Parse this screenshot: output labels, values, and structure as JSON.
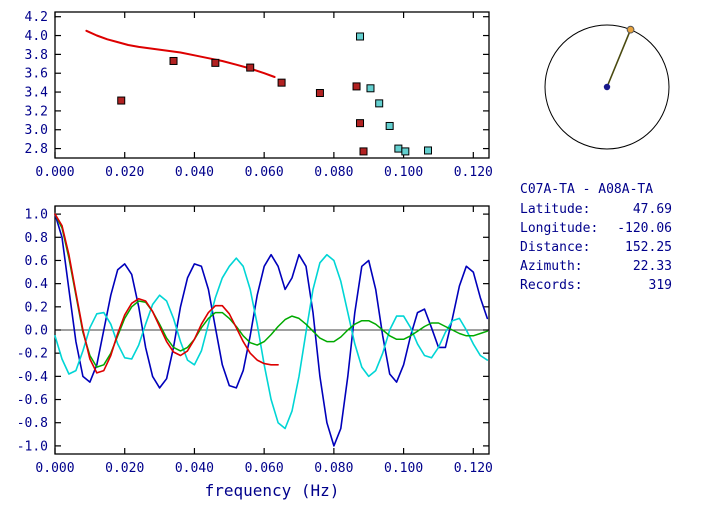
{
  "station": {
    "title": "C07A-TA - A08A-TA",
    "rows": [
      {
        "label": "Latitude:",
        "value": "47.69"
      },
      {
        "label": "Longitude:",
        "value": "-120.06"
      },
      {
        "label": "Distance:",
        "value": "152.25"
      },
      {
        "label": "Azimuth:",
        "value": "22.33"
      },
      {
        "label": "Records:",
        "value": "319"
      }
    ]
  },
  "azimuth_dial": {
    "azimuth_deg": 22.33,
    "circle_color": "#000000",
    "line_color": "#4a4a10",
    "center_dot_color": "#1a1a8c",
    "end_dot_color": "#e8a33d"
  },
  "colors": {
    "text": "#00008b",
    "axis": "#000000",
    "red": "#dd0000",
    "dark_blue": "#0000bb",
    "cyan": "#00d5d5",
    "green": "#00aa00",
    "red_marker": "#b22222",
    "cyan_marker": "#63cfcf"
  },
  "chart_data": [
    {
      "id": "chart-top",
      "type": "scatter",
      "title": "",
      "xlabel": "",
      "ylabel": "",
      "xlim": [
        0,
        0.1245
      ],
      "ylim": [
        2.7,
        4.25
      ],
      "grid": false,
      "axis_color": "#000000",
      "xticks": {
        "values": [
          0,
          0.02,
          0.04,
          0.06,
          0.08,
          0.1,
          0.12
        ],
        "labels": [
          "0.000",
          "0.020",
          "0.040",
          "0.060",
          "0.080",
          "0.100",
          "0.120"
        ]
      },
      "yticks": {
        "values": [
          2.8,
          3.0,
          3.2,
          3.4,
          3.6,
          3.8,
          4.0,
          4.2
        ],
        "labels": [
          "2.8",
          "3.0",
          "3.2",
          "3.4",
          "3.6",
          "3.8",
          "4.0",
          "4.2"
        ]
      },
      "series": [
        {
          "name": "reference-dispersion-curve",
          "type": "line",
          "color": "#dd0000",
          "width": 2,
          "x": [
            0.009,
            0.012,
            0.015,
            0.018,
            0.021,
            0.024,
            0.028,
            0.032,
            0.036,
            0.04,
            0.044,
            0.048,
            0.052,
            0.056,
            0.06,
            0.063
          ],
          "y": [
            4.05,
            4.0,
            3.96,
            3.93,
            3.9,
            3.88,
            3.86,
            3.84,
            3.82,
            3.79,
            3.76,
            3.73,
            3.69,
            3.65,
            3.6,
            3.56
          ]
        },
        {
          "name": "picked-dispersion-points",
          "type": "markers",
          "marker": "square",
          "size": 7,
          "color": "#b22222",
          "x": [
            0.019,
            0.034,
            0.046,
            0.056,
            0.065,
            0.076,
            0.0865,
            0.0875,
            0.0885
          ],
          "y": [
            3.31,
            3.73,
            3.71,
            3.66,
            3.5,
            3.39,
            3.46,
            3.07,
            2.77
          ]
        },
        {
          "name": "alternate-dispersion-points",
          "type": "markers",
          "marker": "square",
          "size": 7,
          "color": "#63cfcf",
          "x": [
            0.0875,
            0.0905,
            0.093,
            0.096,
            0.0985,
            0.1005,
            0.107
          ],
          "y": [
            3.99,
            3.44,
            3.28,
            3.04,
            2.8,
            2.77,
            2.78
          ]
        }
      ]
    },
    {
      "id": "chart-bottom",
      "type": "line",
      "title": "",
      "xlabel": "frequency (Hz)",
      "ylabel": "",
      "xlim": [
        0,
        0.1245
      ],
      "ylim": [
        -1.07,
        1.07
      ],
      "grid": false,
      "hline": 0,
      "axis_color": "#000000",
      "xticks": {
        "values": [
          0,
          0.02,
          0.04,
          0.06,
          0.08,
          0.1,
          0.12
        ],
        "labels": [
          "0.000",
          "0.020",
          "0.040",
          "0.060",
          "0.080",
          "0.100",
          "0.120"
        ]
      },
      "yticks": {
        "values": [
          -1.0,
          -0.8,
          -0.6,
          -0.4,
          -0.2,
          0.0,
          0.2,
          0.4,
          0.6,
          0.8,
          1.0
        ],
        "labels": [
          "-1.0",
          "-0.8",
          "-0.6",
          "-0.4",
          "-0.2",
          "0.0",
          "0.2",
          "0.4",
          "0.6",
          "0.8",
          "1.0"
        ]
      },
      "series": [
        {
          "name": "stacked-correlation-blue",
          "type": "line",
          "color": "#0000bb",
          "width": 1.6,
          "x": [
            0.0,
            0.002,
            0.004,
            0.006,
            0.008,
            0.01,
            0.012,
            0.014,
            0.016,
            0.018,
            0.02,
            0.022,
            0.024,
            0.026,
            0.028,
            0.03,
            0.032,
            0.034,
            0.036,
            0.038,
            0.04,
            0.042,
            0.044,
            0.046,
            0.048,
            0.05,
            0.052,
            0.054,
            0.056,
            0.058,
            0.06,
            0.062,
            0.064,
            0.066,
            0.068,
            0.07,
            0.072,
            0.074,
            0.076,
            0.078,
            0.08,
            0.082,
            0.084,
            0.086,
            0.088,
            0.09,
            0.092,
            0.094,
            0.096,
            0.098,
            0.1,
            0.102,
            0.104,
            0.106,
            0.108,
            0.11,
            0.112,
            0.114,
            0.116,
            0.118,
            0.12,
            0.122,
            0.124
          ],
          "y": [
            1.0,
            0.8,
            0.35,
            -0.1,
            -0.4,
            -0.45,
            -0.3,
            0.0,
            0.3,
            0.52,
            0.57,
            0.48,
            0.2,
            -0.15,
            -0.4,
            -0.5,
            -0.42,
            -0.15,
            0.2,
            0.45,
            0.57,
            0.55,
            0.35,
            0.02,
            -0.3,
            -0.48,
            -0.5,
            -0.35,
            -0.05,
            0.3,
            0.55,
            0.65,
            0.55,
            0.35,
            0.45,
            0.65,
            0.55,
            0.15,
            -0.4,
            -0.8,
            -1.0,
            -0.85,
            -0.4,
            0.15,
            0.55,
            0.6,
            0.35,
            -0.05,
            -0.38,
            -0.45,
            -0.3,
            -0.05,
            0.15,
            0.18,
            0.02,
            -0.15,
            -0.15,
            0.1,
            0.38,
            0.55,
            0.5,
            0.28,
            0.1
          ]
        },
        {
          "name": "stacked-correlation-cyan",
          "type": "line",
          "color": "#00d5d5",
          "width": 1.6,
          "x": [
            0.0,
            0.002,
            0.004,
            0.006,
            0.008,
            0.01,
            0.012,
            0.014,
            0.016,
            0.018,
            0.02,
            0.022,
            0.024,
            0.026,
            0.028,
            0.03,
            0.032,
            0.034,
            0.036,
            0.038,
            0.04,
            0.042,
            0.044,
            0.046,
            0.048,
            0.05,
            0.052,
            0.054,
            0.056,
            0.058,
            0.06,
            0.062,
            0.064,
            0.066,
            0.068,
            0.07,
            0.072,
            0.074,
            0.076,
            0.078,
            0.08,
            0.082,
            0.084,
            0.086,
            0.088,
            0.09,
            0.092,
            0.094,
            0.096,
            0.098,
            0.1,
            0.102,
            0.104,
            0.106,
            0.108,
            0.11,
            0.112,
            0.114,
            0.116,
            0.118,
            0.12,
            0.122,
            0.124
          ],
          "y": [
            -0.05,
            -0.25,
            -0.38,
            -0.35,
            -0.18,
            0.02,
            0.14,
            0.15,
            0.05,
            -0.12,
            -0.24,
            -0.25,
            -0.13,
            0.05,
            0.22,
            0.3,
            0.25,
            0.1,
            -0.1,
            -0.26,
            -0.3,
            -0.18,
            0.05,
            0.28,
            0.45,
            0.55,
            0.62,
            0.55,
            0.35,
            0.05,
            -0.3,
            -0.6,
            -0.8,
            -0.85,
            -0.7,
            -0.4,
            -0.02,
            0.35,
            0.58,
            0.65,
            0.6,
            0.42,
            0.15,
            -0.12,
            -0.32,
            -0.4,
            -0.35,
            -0.2,
            0.0,
            0.12,
            0.12,
            0.02,
            -0.12,
            -0.22,
            -0.24,
            -0.15,
            -0.02,
            0.08,
            0.1,
            0.0,
            -0.12,
            -0.22,
            -0.26
          ]
        },
        {
          "name": "fitted-waveform-green",
          "type": "line",
          "color": "#00aa00",
          "width": 1.5,
          "x": [
            0.0,
            0.002,
            0.004,
            0.006,
            0.008,
            0.01,
            0.012,
            0.014,
            0.016,
            0.018,
            0.02,
            0.022,
            0.024,
            0.026,
            0.028,
            0.03,
            0.032,
            0.034,
            0.036,
            0.038,
            0.04,
            0.042,
            0.044,
            0.046,
            0.048,
            0.05,
            0.052,
            0.054,
            0.056,
            0.058,
            0.06,
            0.062,
            0.064,
            0.066,
            0.068,
            0.07,
            0.072,
            0.074,
            0.076,
            0.078,
            0.08,
            0.082,
            0.084,
            0.086,
            0.088,
            0.09,
            0.092,
            0.094,
            0.096,
            0.098,
            0.1,
            0.102,
            0.104,
            0.106,
            0.108,
            0.11,
            0.112,
            0.114,
            0.116,
            0.118,
            0.12,
            0.122,
            0.124
          ],
          "y": [
            1.0,
            0.88,
            0.62,
            0.3,
            -0.02,
            -0.22,
            -0.32,
            -0.3,
            -0.2,
            -0.05,
            0.1,
            0.2,
            0.25,
            0.24,
            0.16,
            0.05,
            -0.07,
            -0.15,
            -0.18,
            -0.15,
            -0.08,
            0.02,
            0.1,
            0.15,
            0.15,
            0.1,
            0.03,
            -0.05,
            -0.11,
            -0.13,
            -0.1,
            -0.04,
            0.03,
            0.09,
            0.12,
            0.1,
            0.05,
            -0.01,
            -0.07,
            -0.1,
            -0.1,
            -0.06,
            0.0,
            0.05,
            0.08,
            0.08,
            0.05,
            0.0,
            -0.05,
            -0.08,
            -0.08,
            -0.05,
            -0.01,
            0.03,
            0.06,
            0.06,
            0.03,
            0.0,
            -0.03,
            -0.05,
            -0.05,
            -0.03,
            -0.01
          ]
        },
        {
          "name": "fitted-waveform-red",
          "type": "line",
          "color": "#dd0000",
          "width": 1.6,
          "x": [
            0.0,
            0.002,
            0.004,
            0.006,
            0.008,
            0.01,
            0.012,
            0.014,
            0.016,
            0.018,
            0.02,
            0.022,
            0.024,
            0.026,
            0.028,
            0.03,
            0.032,
            0.034,
            0.036,
            0.038,
            0.04,
            0.042,
            0.044,
            0.046,
            0.048,
            0.05,
            0.052,
            0.054,
            0.056,
            0.058,
            0.06,
            0.062,
            0.064
          ],
          "y": [
            1.0,
            0.9,
            0.65,
            0.32,
            0.0,
            -0.25,
            -0.37,
            -0.35,
            -0.22,
            -0.03,
            0.13,
            0.23,
            0.27,
            0.25,
            0.16,
            0.03,
            -0.1,
            -0.19,
            -0.22,
            -0.18,
            -0.08,
            0.05,
            0.15,
            0.21,
            0.21,
            0.14,
            0.02,
            -0.1,
            -0.2,
            -0.26,
            -0.29,
            -0.3,
            -0.3
          ]
        }
      ]
    }
  ]
}
